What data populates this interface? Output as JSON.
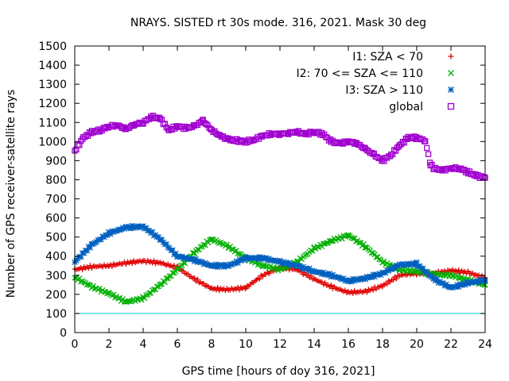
{
  "chart_data": {
    "type": "scatter",
    "title": "NRAYS. SISTED rt 30s mode. 316, 2021. Mask 30 deg",
    "xlabel": "GPS time [hours of doy 316, 2021]",
    "ylabel": "Number of GPS receiver-satellite rays",
    "xlim": [
      0,
      24
    ],
    "ylim": [
      0,
      1500
    ],
    "xticks": [
      0,
      2,
      4,
      6,
      8,
      10,
      12,
      14,
      16,
      18,
      20,
      22,
      24
    ],
    "yticks": [
      0,
      100,
      200,
      300,
      400,
      500,
      600,
      700,
      800,
      900,
      1000,
      1100,
      1200,
      1300,
      1400,
      1500
    ],
    "grid": false,
    "legend_position": "top-right",
    "reference_line": {
      "y": 100,
      "color": "#00c8c8"
    },
    "series": [
      {
        "name": "I1: SZA < 70",
        "marker": "+",
        "color": "#e00000",
        "x": [
          0,
          1,
          2,
          3,
          4,
          5,
          6,
          7,
          8,
          9,
          10,
          11,
          12,
          13,
          14,
          15,
          16,
          17,
          18,
          19,
          20,
          21,
          22,
          23,
          24
        ],
        "y": [
          330,
          345,
          350,
          365,
          375,
          365,
          340,
          280,
          230,
          225,
          235,
          300,
          340,
          330,
          280,
          240,
          210,
          215,
          245,
          300,
          310,
          310,
          325,
          315,
          285
        ]
      },
      {
        "name": "I2: 70 <= SZA <= 110",
        "marker": "x",
        "color": "#00b000",
        "x": [
          0,
          1,
          2,
          3,
          4,
          5,
          6,
          7,
          8,
          9,
          10,
          11,
          12,
          13,
          14,
          15,
          16,
          17,
          18,
          19,
          20,
          21,
          22,
          23,
          24
        ],
        "y": [
          290,
          240,
          205,
          160,
          180,
          250,
          330,
          420,
          490,
          450,
          390,
          350,
          330,
          370,
          440,
          480,
          510,
          450,
          370,
          330,
          320,
          305,
          300,
          275,
          250
        ]
      },
      {
        "name": "I3: SZA > 110",
        "marker": "*",
        "color": "#0060c0",
        "x": [
          0,
          1,
          2,
          3,
          4,
          5,
          6,
          7,
          8,
          9,
          10,
          11,
          12,
          13,
          14,
          15,
          16,
          17,
          18,
          19,
          20,
          21,
          22,
          23,
          24
        ],
        "y": [
          370,
          460,
          520,
          550,
          555,
          490,
          400,
          380,
          350,
          350,
          390,
          390,
          370,
          350,
          320,
          300,
          270,
          285,
          310,
          355,
          360,
          280,
          235,
          260,
          275
        ]
      },
      {
        "name": "global",
        "marker": "square",
        "color": "#a000d0",
        "x": [
          0,
          0.5,
          1,
          1.5,
          2,
          2.5,
          3,
          3.5,
          4,
          4.5,
          5,
          5.5,
          6,
          6.5,
          7,
          7.5,
          8,
          8.5,
          9,
          9.5,
          10,
          10.5,
          11,
          11.5,
          12,
          12.5,
          13,
          13.5,
          14,
          14.5,
          15,
          15.5,
          16,
          16.5,
          17,
          17.5,
          18,
          18.5,
          19,
          19.5,
          20,
          20.5,
          20.8,
          21,
          21.5,
          22,
          22.5,
          23,
          23.5,
          24
        ],
        "y": [
          950,
          1020,
          1050,
          1060,
          1080,
          1085,
          1065,
          1090,
          1100,
          1130,
          1120,
          1060,
          1080,
          1070,
          1080,
          1110,
          1060,
          1030,
          1010,
          1005,
          1000,
          1010,
          1030,
          1040,
          1040,
          1045,
          1050,
          1040,
          1050,
          1040,
          1000,
          990,
          1000,
          990,
          960,
          930,
          900,
          930,
          980,
          1020,
          1020,
          1005,
          880,
          860,
          850,
          860,
          860,
          840,
          820,
          810
        ]
      }
    ]
  }
}
